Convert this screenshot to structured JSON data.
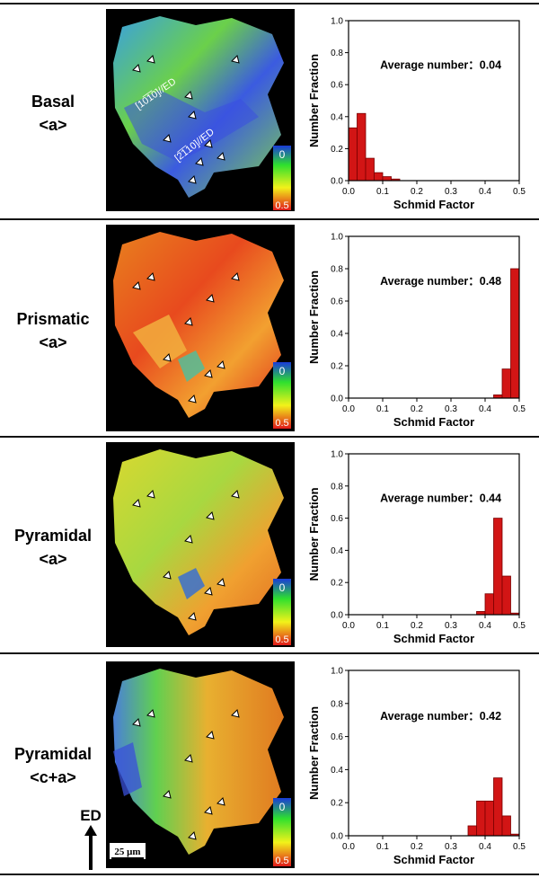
{
  "rows": [
    {
      "label_line1": "Basal",
      "label_line2": "<a>",
      "map_annotation_1": "[10̅1̅0]//ED",
      "map_annotation_2": "[2̅1̅10]//ED"
    },
    {
      "label_line1": "Prismatic",
      "label_line2": "<a>"
    },
    {
      "label_line1": "Pyramidal",
      "label_line2": "<a>"
    },
    {
      "label_line1": "Pyramidal",
      "label_line2": "<c+a>"
    }
  ],
  "colorbar": {
    "top": "0",
    "bottom": "0.5"
  },
  "ed_label": "ED",
  "scale_bar": "25 μm",
  "colors": {
    "bar": "#d21515",
    "bar_edge": "#7a0000"
  },
  "chart_data": [
    {
      "type": "bar",
      "annotation": "Average number：0.04",
      "xlabel": "Schmid Factor",
      "ylabel": "Number Fraction",
      "xlim": [
        0,
        0.5
      ],
      "ylim": [
        0,
        1.0
      ],
      "xticks": [
        "0.0",
        "0.1",
        "0.2",
        "0.3",
        "0.4",
        "0.5"
      ],
      "yticks": [
        "0.0",
        "0.2",
        "0.4",
        "0.6",
        "0.8",
        "1.0"
      ],
      "bin_width": 0.025,
      "bin_start": [
        0.0,
        0.025,
        0.05,
        0.075,
        0.1,
        0.125
      ],
      "values": [
        0.33,
        0.42,
        0.14,
        0.05,
        0.025,
        0.01
      ]
    },
    {
      "type": "bar",
      "annotation": "Average number：0.48",
      "xlabel": "Schmid Factor",
      "ylabel": "Number Fraction",
      "xlim": [
        0,
        0.5
      ],
      "ylim": [
        0,
        1.0
      ],
      "xticks": [
        "0.0",
        "0.1",
        "0.2",
        "0.3",
        "0.4",
        "0.5"
      ],
      "yticks": [
        "0.0",
        "0.2",
        "0.4",
        "0.6",
        "0.8",
        "1.0"
      ],
      "bin_width": 0.025,
      "bin_start": [
        0.425,
        0.45,
        0.475
      ],
      "values": [
        0.02,
        0.18,
        0.8
      ]
    },
    {
      "type": "bar",
      "annotation": "Average number：0.44",
      "xlabel": "Schmid Factor",
      "ylabel": "Number Fraction",
      "xlim": [
        0,
        0.5
      ],
      "ylim": [
        0,
        1.0
      ],
      "xticks": [
        "0.0",
        "0.1",
        "0.2",
        "0.3",
        "0.4",
        "0.5"
      ],
      "yticks": [
        "0.0",
        "0.2",
        "0.4",
        "0.6",
        "0.8",
        "1.0"
      ],
      "bin_width": 0.025,
      "bin_start": [
        0.375,
        0.4,
        0.425,
        0.45,
        0.475
      ],
      "values": [
        0.02,
        0.13,
        0.6,
        0.24,
        0.01
      ]
    },
    {
      "type": "bar",
      "annotation": "Average number：0.42",
      "xlabel": "Schmid Factor",
      "ylabel": "Number Fraction",
      "xlim": [
        0,
        0.5
      ],
      "ylim": [
        0,
        1.0
      ],
      "xticks": [
        "0.0",
        "0.1",
        "0.2",
        "0.3",
        "0.4",
        "0.5"
      ],
      "yticks": [
        "0.0",
        "0.2",
        "0.4",
        "0.6",
        "0.8",
        "1.0"
      ],
      "bin_width": 0.025,
      "bin_start": [
        0.35,
        0.375,
        0.4,
        0.425,
        0.45,
        0.475
      ],
      "values": [
        0.06,
        0.21,
        0.21,
        0.35,
        0.12,
        0.01
      ]
    }
  ]
}
